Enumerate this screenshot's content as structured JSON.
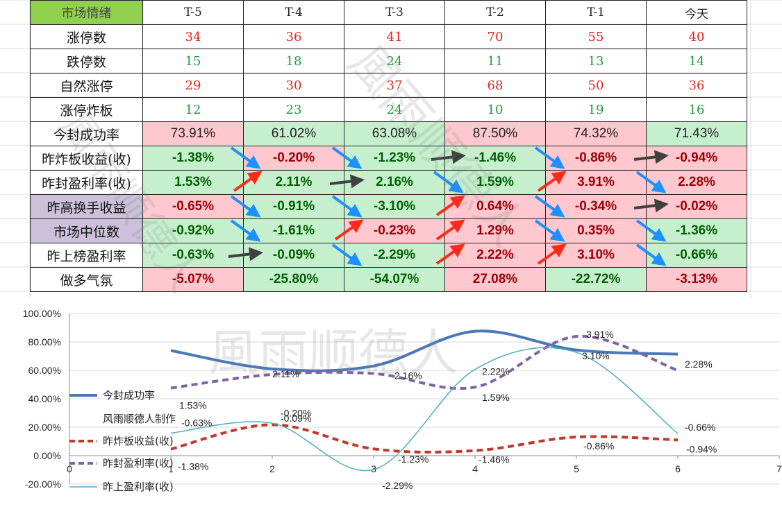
{
  "colors": {
    "up": "#e8261d",
    "down": "#1f9d3a",
    "pos_bg": "#ffc7ce",
    "neg_bg": "#c6efce",
    "pos_text": "#9c0006",
    "neg_text": "#006100",
    "head_green": "#92d050",
    "purple": "#ccc0da",
    "arrow_up": "#ff2a1a",
    "arrow_down": "#1e90ff",
    "arrow_flat": "#404040"
  },
  "table": {
    "corner": "市场情绪",
    "columns": [
      "T-5",
      "T-4",
      "T-3",
      "T-2",
      "T-1",
      "今天"
    ],
    "rows": [
      {
        "label": "涨停数",
        "type": "count",
        "color": "up",
        "values": [
          "34",
          "36",
          "41",
          "70",
          "55",
          "40"
        ]
      },
      {
        "label": "跌停数",
        "type": "count",
        "color": "down",
        "values": [
          "15",
          "18",
          "24",
          "11",
          "13",
          "14"
        ]
      },
      {
        "label": "自然涨停",
        "type": "count",
        "color": "up",
        "values": [
          "29",
          "30",
          "37",
          "68",
          "50",
          "36"
        ]
      },
      {
        "label": "涨停炸板",
        "type": "count",
        "color": "down",
        "values": [
          "12",
          "23",
          "24",
          "10",
          "19",
          "16"
        ]
      },
      {
        "label": "今封成功率",
        "type": "rate",
        "values": [
          "73.91%",
          "61.02%",
          "63.08%",
          "87.50%",
          "74.32%",
          "71.43%"
        ],
        "bg": [
          "pos",
          "neg",
          "neg",
          "pos",
          "pos",
          "neg"
        ]
      },
      {
        "label": "昨炸板收益(收)",
        "type": "bold",
        "values": [
          "-1.38%",
          "-0.20%",
          "-1.23%",
          "-1.46%",
          "-0.86%",
          "-0.94%"
        ],
        "bg": [
          "neg",
          "pos",
          "neg",
          "neg",
          "pos",
          "pos"
        ],
        "arrows": [
          "down",
          "down",
          "flat",
          "down",
          "flat"
        ]
      },
      {
        "label": "昨封盈利率(收)",
        "type": "bold",
        "values": [
          "1.53%",
          "2.11%",
          "2.16%",
          "1.59%",
          "3.91%",
          "2.28%"
        ],
        "bg": [
          "neg",
          "neg",
          "neg",
          "neg",
          "pos",
          "pos"
        ],
        "arrows": [
          "up",
          "flat",
          "down",
          "up",
          "down"
        ]
      },
      {
        "label": "昨高换手收益",
        "type": "bold",
        "purple": true,
        "values": [
          "-0.65%",
          "-0.91%",
          "-3.10%",
          "0.64%",
          "-0.34%",
          "-0.02%"
        ],
        "bg": [
          "pos",
          "neg",
          "neg",
          "pos",
          "pos",
          "pos"
        ],
        "arrows": [
          "down",
          "down",
          "up",
          "down",
          "flat"
        ]
      },
      {
        "label": "市场中位数",
        "type": "bold",
        "purple": true,
        "values": [
          "-0.92%",
          "-1.61%",
          "-0.23%",
          "1.29%",
          "0.35%",
          "-1.36%"
        ],
        "bg": [
          "neg",
          "neg",
          "pos",
          "pos",
          "pos",
          "neg"
        ],
        "arrows": [
          "down",
          "up",
          "up",
          "down",
          "down"
        ]
      },
      {
        "label": "昨上榜盈利率",
        "type": "bold",
        "values": [
          "-0.63%",
          "-0.09%",
          "-2.29%",
          "2.22%",
          "3.10%",
          "-0.66%"
        ],
        "bg": [
          "neg",
          "neg",
          "neg",
          "pos",
          "pos",
          "neg"
        ],
        "arrows": [
          "flat",
          "down",
          "up",
          "up",
          "down"
        ]
      },
      {
        "label": "做多气氛",
        "type": "bold",
        "values": [
          "-5.07%",
          "-25.80%",
          "-54.07%",
          "27.08%",
          "-22.72%",
          "-3.13%"
        ],
        "bg": [
          "pos",
          "neg",
          "neg",
          "pos",
          "neg",
          "pos"
        ]
      }
    ]
  },
  "watermark": "風雨顺德人",
  "chart_data": {
    "type": "line",
    "x": [
      1,
      2,
      3,
      4,
      5,
      6
    ],
    "xlim": [
      0,
      7
    ],
    "ylim": [
      -0.2,
      1.0
    ],
    "yticks": [
      "100.00%",
      "80.00%",
      "60.00%",
      "40.00%",
      "20.00%",
      "0.00%",
      "-20.00%"
    ],
    "xticks": [
      "0",
      "1",
      "2",
      "3",
      "4",
      "5",
      "6",
      "7"
    ],
    "legend_position": "left",
    "legend_note": "风雨顺德人制作",
    "series": [
      {
        "name": "今封成功率",
        "values": [
          0.7391,
          0.6102,
          0.6308,
          0.875,
          0.7432,
          0.7143
        ],
        "color": "#4a78b8",
        "dash": "solid",
        "width": 4,
        "labels": false
      },
      {
        "name": "昨炸板收益(收)",
        "values": [
          0.0462,
          0.218,
          0.0477,
          0.0354,
          0.1314,
          0.1106
        ],
        "color": "#c0392b",
        "dash": "dashed",
        "width": 4,
        "labels": true,
        "label_text": [
          "-1.38%",
          "-0.20%",
          "-1.23%",
          "-1.46%",
          "-0.86%",
          "-0.94%"
        ]
      },
      {
        "name": "昨封盈利率(收)",
        "values": [
          0.4753,
          0.5711,
          0.5776,
          0.4819,
          0.8389,
          0.5998
        ],
        "color": "#8064a2",
        "dash": "dashed",
        "width": 4,
        "labels": true,
        "label_text": [
          "1.53%",
          "2.11%",
          "2.16%",
          "1.59%",
          "3.91%",
          "2.28%"
        ]
      },
      {
        "name": "昨上盈利率(收)",
        "values": [
          0.159,
          0.2283,
          -0.0977,
          0.6069,
          0.7267,
          0.1554
        ],
        "color": "#4bacc6",
        "dash": "solid",
        "width": 1.5,
        "labels": true,
        "label_text": [
          "-0.63%",
          "-0.09%",
          "-2.29%",
          "2.22%",
          "3.10%",
          "-0.66%"
        ]
      }
    ]
  }
}
